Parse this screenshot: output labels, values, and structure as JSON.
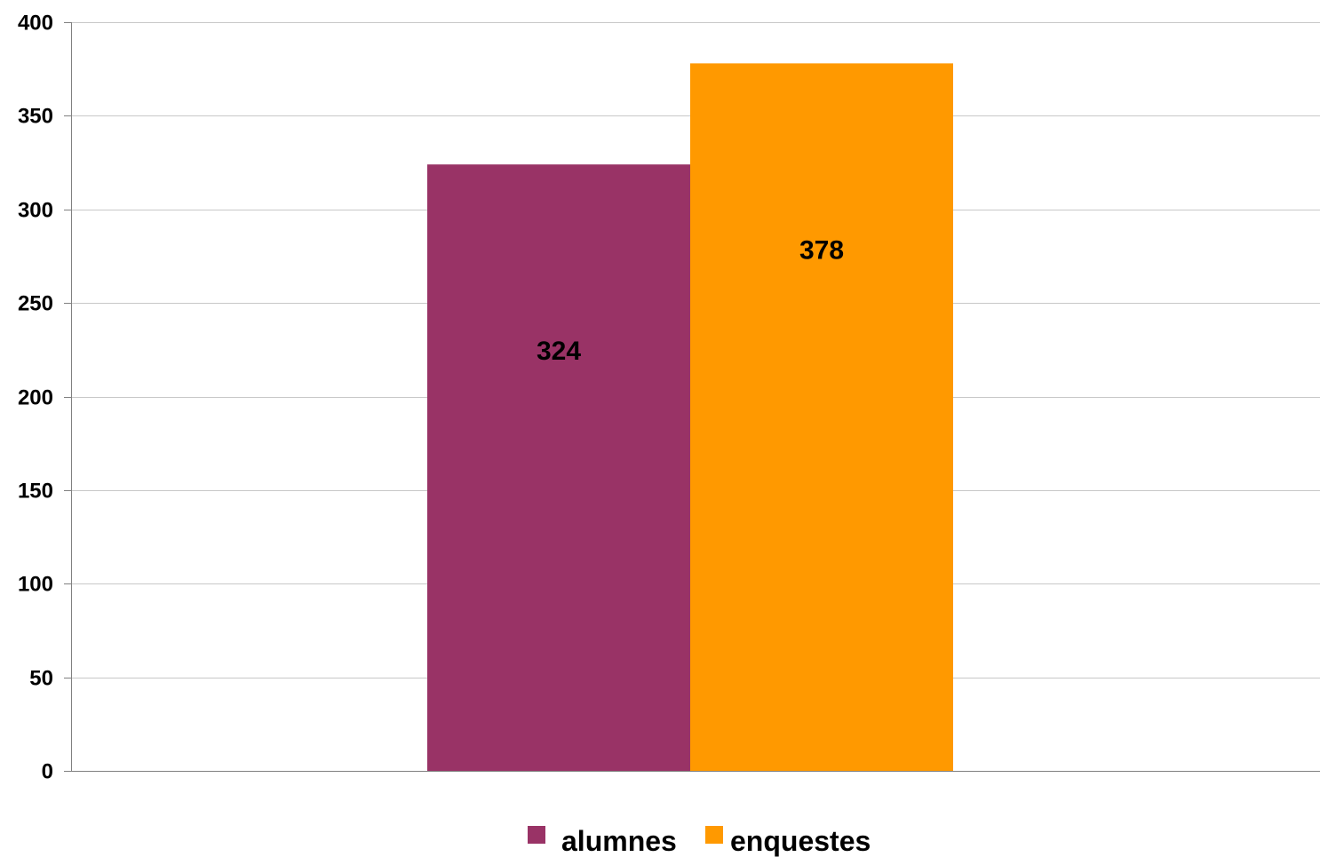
{
  "chart_data": {
    "type": "bar",
    "title": "",
    "xlabel": "",
    "ylabel": "",
    "ylim": [
      0,
      400
    ],
    "yticks": [
      0,
      50,
      100,
      150,
      200,
      250,
      300,
      350,
      400
    ],
    "grid": true,
    "legend_position": "bottom",
    "categories": [
      ""
    ],
    "series": [
      {
        "name": "alumnes",
        "values": [
          324
        ],
        "color": "#993366"
      },
      {
        "name": "enquestes",
        "values": [
          378
        ],
        "color": "#FF9900"
      }
    ]
  }
}
